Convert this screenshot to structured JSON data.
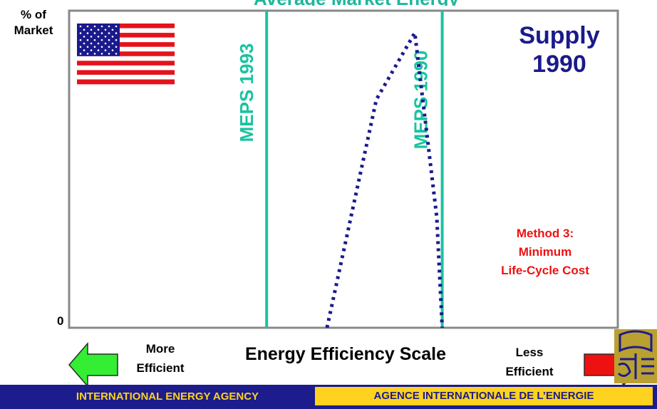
{
  "title": "Average Market Energy",
  "ylabel_line1": "% of",
  "ylabel_line2": "Market",
  "y_zero": "0",
  "supply_line1": "Supply",
  "supply_line2": "1990",
  "method_lines": [
    "Method 3:",
    "Minimum",
    "Life-Cycle Cost"
  ],
  "xlabel": "Energy Efficiency Scale",
  "more_efficient": [
    "More",
    "Efficient"
  ],
  "less_efficient": [
    "Less",
    "Efficient"
  ],
  "footer_left": "INTERNATIONAL ENERGY AGENCY",
  "footer_right": "AGENCE INTERNATIONALE DE L’ENERGIE",
  "colors": {
    "frame": "#888888",
    "meps_line": "#19c3a0",
    "curve": "#1a1a8c",
    "supply": "#1a1a8c",
    "method": "#ee1111",
    "arrow_left": "#33ee33",
    "arrow_right": "#ee1111",
    "footer_bg": "#1c1c8c",
    "footer_accent": "#ffd21f"
  },
  "icons": [
    "us-flag-icon",
    "left-arrow-icon",
    "right-arrow-icon",
    "iea-logo-icon"
  ],
  "chart_data": {
    "type": "line",
    "title": "Average Market Energy",
    "xlabel": "Energy Efficiency Scale",
    "ylabel": "% of Market",
    "x_direction": "left = More Efficient, right = Less Efficient",
    "grid": false,
    "vertical_lines": [
      {
        "label": "MEPS 1993",
        "x": 0.36
      },
      {
        "label": "MEPS 1990",
        "x": 0.68
      }
    ],
    "series": [
      {
        "name": "Supply 1990",
        "style": "dotted",
        "x": [
          0.47,
          0.56,
          0.63,
          0.67,
          0.68
        ],
        "y": [
          0.0,
          0.72,
          0.93,
          0.35,
          0.0
        ]
      }
    ],
    "xlim": [
      0,
      1
    ],
    "ylim": [
      0,
      1
    ]
  }
}
